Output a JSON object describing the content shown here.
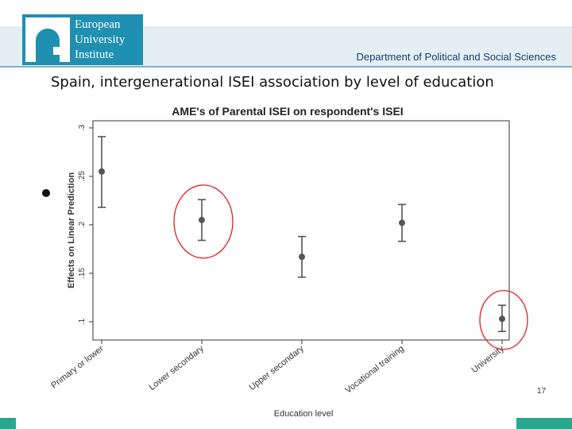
{
  "header": {
    "logo_lines": [
      "European",
      "University",
      "Institute"
    ],
    "department": "Department of Political and Social Sciences"
  },
  "slide": {
    "title": "Spain, intergenerational ISEI association by level of education",
    "page_number": "17"
  },
  "colors": {
    "brand": "#1f8fb2",
    "accent_bar": "#2aa78f",
    "marker": "#555555",
    "highlight": "#e02020"
  },
  "chart_data": {
    "type": "scatter",
    "title": "AME's of Parental ISEI on respondent's ISEI",
    "xlabel": "Education level",
    "ylabel": "Effects on Linear Prediction",
    "categories": [
      "Primary or lower",
      "Lower secondary",
      "Upper secondary",
      "Vocational training",
      "University"
    ],
    "values": [
      0.255,
      0.205,
      0.167,
      0.202,
      0.103
    ],
    "ci_lower": [
      0.218,
      0.184,
      0.146,
      0.183,
      0.09
    ],
    "ci_upper": [
      0.291,
      0.226,
      0.188,
      0.221,
      0.117
    ],
    "ylim": [
      0.1,
      0.3
    ],
    "yticks": [
      0.1,
      0.15,
      0.2,
      0.25,
      0.3
    ],
    "ytick_labels": [
      ".1",
      ".15",
      ".2",
      ".25",
      ".3"
    ],
    "highlighted": [
      "Lower secondary",
      "University"
    ],
    "grid": false
  }
}
